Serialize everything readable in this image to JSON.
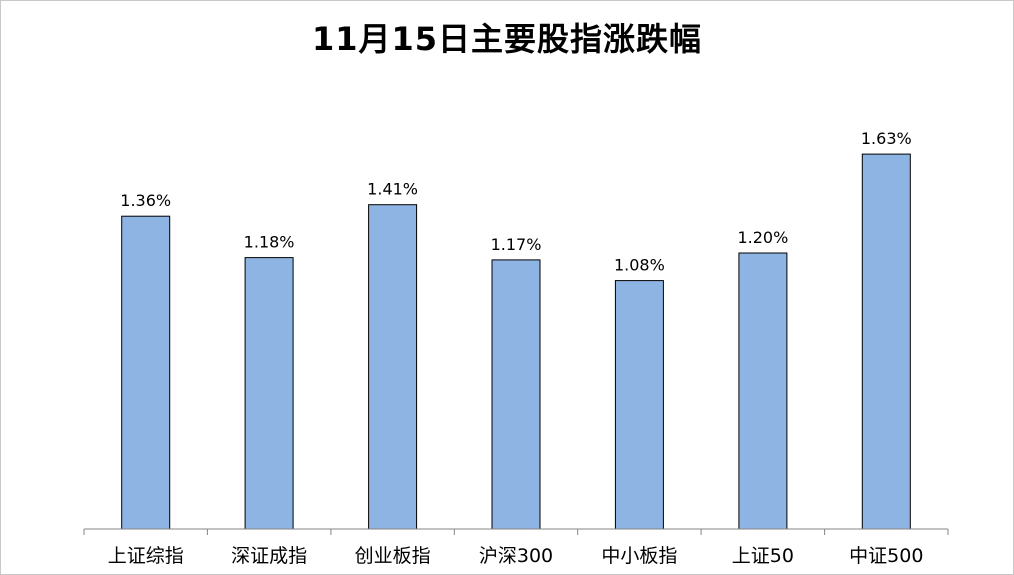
{
  "chart_data": {
    "type": "bar",
    "title": "11月15日主要股指涨跌幅",
    "xlabel": "",
    "ylabel": "",
    "categories": [
      "上证综指",
      "深证成指",
      "创业板指",
      "沪深300",
      "中小板指",
      "上证50",
      "中证500"
    ],
    "values": [
      1.36,
      1.18,
      1.41,
      1.17,
      1.08,
      1.2,
      1.63
    ],
    "data_labels": [
      "1.36%",
      "1.18%",
      "1.41%",
      "1.17%",
      "1.08%",
      "1.20%",
      "1.63%"
    ],
    "unit": "%",
    "ylim": [
      0,
      1.8
    ],
    "grid": false,
    "legend": "none",
    "bar_color": "#8EB4E3",
    "bar_edge_color": "#000000"
  }
}
